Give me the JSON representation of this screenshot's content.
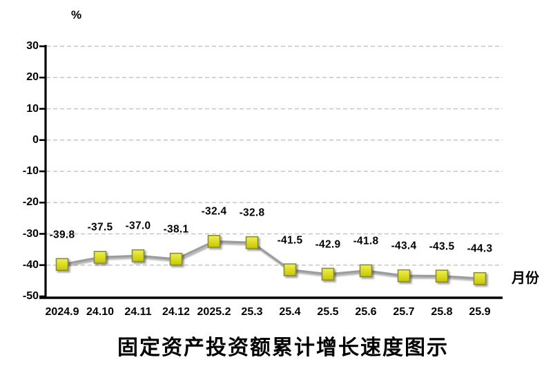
{
  "chart_data": {
    "type": "line",
    "title": "固定资产投资额累计增长速度图示",
    "ylabel": "%",
    "xlabel": "月份",
    "categories": [
      "2024.9",
      "24.10",
      "24.11",
      "24.12",
      "2025.2",
      "25.3",
      "25.4",
      "25.5",
      "25.6",
      "25.7",
      "25.8",
      "25.9"
    ],
    "values": [
      -39.8,
      -37.5,
      -37.0,
      -38.1,
      -32.4,
      -32.8,
      -41.5,
      -42.9,
      -41.8,
      -43.4,
      -43.5,
      -44.3
    ],
    "data_labels": [
      "-39.8",
      "-37.5",
      "-37.0",
      "-38.1",
      "-32.4",
      "-32.8",
      "-41.5",
      "-42.9",
      "-41.8",
      "-43.4",
      "-43.5",
      "-44.3"
    ],
    "ylim": [
      -50,
      30
    ],
    "ytick_step": 10,
    "ytick_labels": [
      "30",
      "20",
      "10",
      "0",
      "-10",
      "-20",
      "-30",
      "-40",
      "-50"
    ],
    "grid": "horizontal-dashed",
    "legend": "none",
    "colors": {
      "line": "#9c9c9c",
      "marker_fill_top": "#f0f04e",
      "marker_fill_bottom": "#c6c600",
      "marker_border": "#8a8a3c",
      "grid": "#c6c6c6",
      "axis": "#000000",
      "background": "#ffffff"
    }
  }
}
